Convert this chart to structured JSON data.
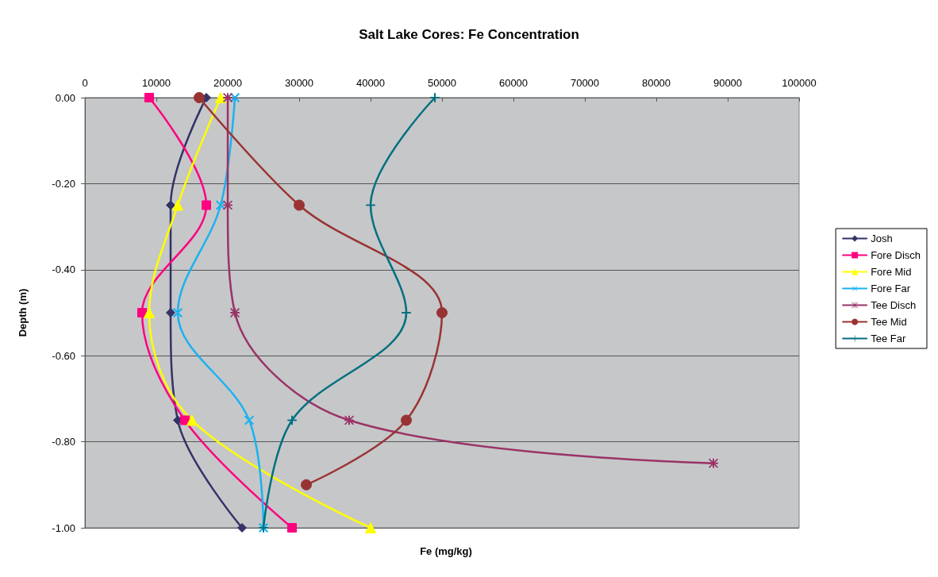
{
  "chart_data": {
    "type": "line",
    "title": "Salt Lake Cores: Fe Concentration",
    "xlabel": "Fe (mg/kg)",
    "ylabel": "Depth (m)",
    "xlim": [
      0,
      100000
    ],
    "xticks": [
      0,
      10000,
      20000,
      30000,
      40000,
      50000,
      60000,
      70000,
      80000,
      90000,
      100000
    ],
    "ylim": [
      -1,
      0
    ],
    "yticks": [
      {
        "value": 0,
        "label": "0.00"
      },
      {
        "value": -0.2,
        "label": "-0.20"
      },
      {
        "value": -0.4,
        "label": "-0.40"
      },
      {
        "value": -0.6,
        "label": "-0.60"
      },
      {
        "value": -0.8,
        "label": "-0.80"
      },
      {
        "value": -1,
        "label": "-1.00"
      }
    ],
    "grid": "y",
    "legend": "right",
    "series": [
      {
        "name": "Josh",
        "color": "#333366",
        "marker": "diamond",
        "x": [
          17000,
          12000,
          12000,
          13000,
          22000
        ],
        "values": [
          0,
          -0.25,
          -0.5,
          -0.75,
          -1
        ]
      },
      {
        "name": "Fore Disch",
        "color": "#ff0080",
        "marker": "square",
        "x": [
          9000,
          17000,
          8000,
          14000,
          29000
        ],
        "values": [
          0,
          -0.25,
          -0.5,
          -0.75,
          -1
        ]
      },
      {
        "name": "Fore Mid",
        "color": "#ffff00",
        "marker": "triangle",
        "x": [
          19000,
          13000,
          9000,
          15000,
          40000
        ],
        "values": [
          0,
          -0.25,
          -0.5,
          -0.75,
          -1
        ]
      },
      {
        "name": "Fore Far",
        "color": "#1ab2f0",
        "marker": "cross",
        "x": [
          21000,
          19000,
          13000,
          23000,
          25000
        ],
        "values": [
          0,
          -0.25,
          -0.5,
          -0.75,
          -1
        ]
      },
      {
        "name": "Tee Disch",
        "color": "#993366",
        "marker": "star",
        "x": [
          20000,
          20000,
          21000,
          37000,
          88000
        ],
        "values": [
          0,
          -0.25,
          -0.5,
          -0.75,
          -0.85
        ]
      },
      {
        "name": "Tee Mid",
        "color": "#993333",
        "marker": "circle",
        "x": [
          16000,
          30000,
          50000,
          45000,
          31000
        ],
        "values": [
          0,
          -0.25,
          -0.5,
          -0.75,
          -0.9
        ]
      },
      {
        "name": "Tee Far",
        "color": "#007080",
        "marker": "cross",
        "x": [
          49000,
          40000,
          45000,
          29000,
          25000
        ],
        "values": [
          0,
          -0.25,
          -0.5,
          -0.75,
          -1
        ]
      }
    ]
  }
}
